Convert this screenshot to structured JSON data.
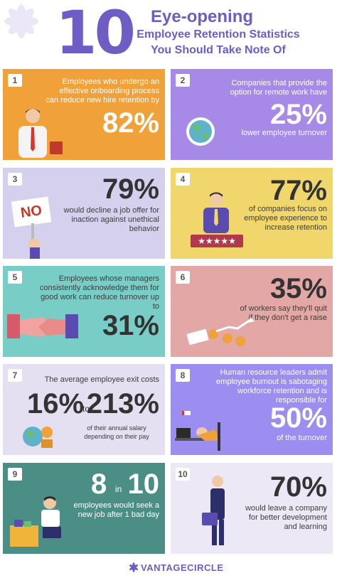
{
  "header": {
    "number": "10",
    "line1": "Eye-opening",
    "line2": "Employee Retention Statistics",
    "line3": "You Should Take Note Of"
  },
  "colors": {
    "orange": "#f0a13a",
    "purple": "#a78ae8",
    "lavender": "#d6d0ef",
    "yellow": "#f1d76b",
    "teal": "#79cdc7",
    "rose": "#e3a8a6",
    "light_lavender": "#e4dff1",
    "violet": "#9c8df0",
    "dark_teal": "#4b8e86",
    "pale": "#ece8f6",
    "brand": "#6f5cc4"
  },
  "cards": [
    {
      "num": "1",
      "text": "Employees who undergo an effective onboarding process can reduce new hire retention by",
      "stat": "82%"
    },
    {
      "num": "2",
      "text": "Companies that provide the option for remote work have",
      "stat": "25%",
      "text2": "lower employee turnover"
    },
    {
      "num": "3",
      "stat": "79%",
      "text": "would decline a job offer for inaction against unethical behavior",
      "sign": "NO"
    },
    {
      "num": "4",
      "stat": "77%",
      "text": "of companies focus on employee experience to increase retention",
      "stars": "★★★★★"
    },
    {
      "num": "5",
      "text": "Employees whose managers consistently acknowledge them for good work can reduce turnover up to",
      "stat": "31%"
    },
    {
      "num": "6",
      "stat": "35%",
      "text": "of workers say they'll quit if they don't get a raise"
    },
    {
      "num": "7",
      "text": "The average employee exit costs",
      "stat_a": "16%",
      "to": "to",
      "stat_b": "213%",
      "text2": "of their annual salary depending on their pay"
    },
    {
      "num": "8",
      "text": "Human resource leaders admit employee burnout is sabotaging workforce retention and is responsible for",
      "stat": "50%",
      "text2": "of the turnover"
    },
    {
      "num": "9",
      "stat_a": "8",
      "in": "in",
      "stat_b": "10",
      "text": "employees would seek a new job after 1 bad day"
    },
    {
      "num": "10",
      "stat": "70%",
      "text": "would leave a company for better development and learning"
    }
  ],
  "footer": {
    "brand": "VANTAGECIRCLE"
  }
}
